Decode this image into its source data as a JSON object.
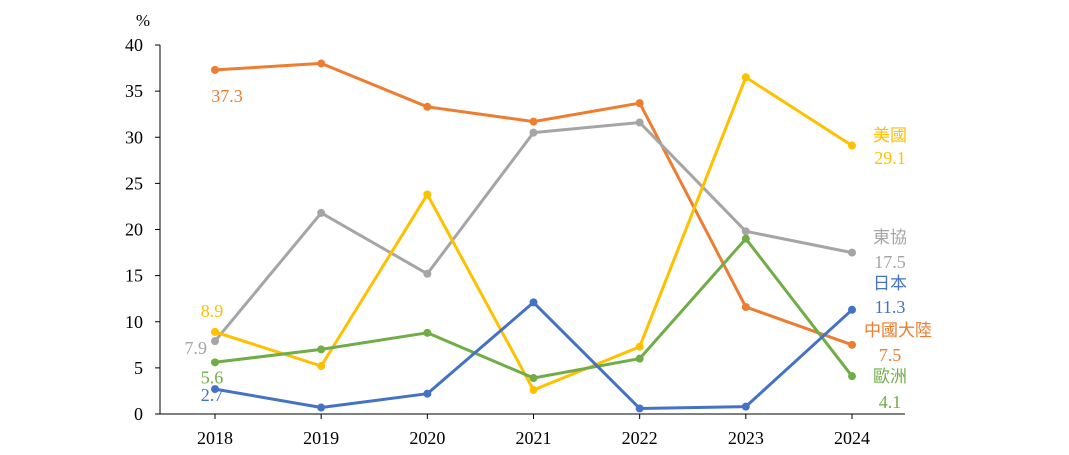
{
  "chart_data": {
    "type": "line",
    "title": "",
    "xlabel": "",
    "ylabel": "%",
    "ylim": [
      0,
      40
    ],
    "yticks": [
      0,
      5,
      10,
      15,
      20,
      25,
      30,
      35,
      40
    ],
    "grid": false,
    "categories": [
      "2018",
      "2019",
      "2020",
      "2021",
      "2022",
      "2023",
      "2024"
    ],
    "series": [
      {
        "name": "中國大陸",
        "color": "#ED7D31",
        "values": [
          37.3,
          38.0,
          33.3,
          31.7,
          33.7,
          11.6,
          7.5
        ]
      },
      {
        "name": "東協",
        "color": "#A5A5A5",
        "values": [
          7.9,
          21.8,
          15.2,
          30.5,
          31.6,
          19.8,
          17.5
        ]
      },
      {
        "name": "美國",
        "color": "#FFC000",
        "values": [
          8.9,
          5.2,
          23.8,
          2.6,
          7.3,
          36.5,
          29.1
        ]
      },
      {
        "name": "歐洲",
        "color": "#70AD47",
        "values": [
          5.6,
          7.0,
          8.8,
          3.9,
          6.0,
          19.0,
          4.1
        ]
      },
      {
        "name": "日本",
        "color": "#4472C4",
        "values": [
          2.7,
          0.7,
          2.2,
          12.1,
          0.6,
          0.8,
          11.3
        ]
      }
    ],
    "data_labels": [
      {
        "series": "中國大陸",
        "index": 0,
        "text": "37.3"
      },
      {
        "series": "東協",
        "index": 0,
        "text": "7.9"
      },
      {
        "series": "美國",
        "index": 0,
        "text": "8.9"
      },
      {
        "series": "歐洲",
        "index": 0,
        "text": "5.6"
      },
      {
        "series": "日本",
        "index": 0,
        "text": "2.7"
      },
      {
        "series": "美國",
        "index": 6,
        "text": "29.1"
      },
      {
        "series": "東協",
        "index": 6,
        "text": "17.5"
      },
      {
        "series": "日本",
        "index": 6,
        "text": "11.3"
      },
      {
        "series": "中國大陸",
        "index": 6,
        "text": "7.5"
      },
      {
        "series": "歐洲",
        "index": 6,
        "text": "4.1"
      }
    ]
  }
}
